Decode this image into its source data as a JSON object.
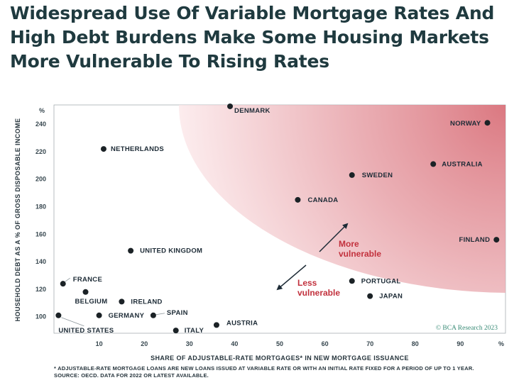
{
  "header": {
    "title_lines": [
      "Widespread Use Of Variable Mortgage Rates And",
      "High Debt Burdens Make Some Housing Markets",
      "More Vulnerable To Rising Rates"
    ]
  },
  "chart_data": {
    "type": "scatter",
    "xlabel": "SHARE OF ADJUSTABLE-RATE MORTGAGES* IN NEW MORTGAGE ISSUANCE",
    "ylabel": "HOUSEHOLD DEBT AS A % OF GROSS DISPOSABLE INCOME",
    "x_unit": "%",
    "y_unit": "%",
    "xlim": [
      0,
      100
    ],
    "ylim": [
      88,
      254
    ],
    "xticks": [
      10,
      20,
      30,
      40,
      50,
      60,
      70,
      80,
      90
    ],
    "yticks": [
      100,
      120,
      140,
      160,
      180,
      200,
      220,
      240
    ],
    "grid": false,
    "points": [
      {
        "label": "DENMARK",
        "x": 39,
        "y": 253
      },
      {
        "label": "NORWAY",
        "x": 96,
        "y": 241
      },
      {
        "label": "NETHERLANDS",
        "x": 11,
        "y": 222
      },
      {
        "label": "AUSTRALIA",
        "x": 84,
        "y": 211
      },
      {
        "label": "SWEDEN",
        "x": 66,
        "y": 203
      },
      {
        "label": "CANADA",
        "x": 54,
        "y": 185
      },
      {
        "label": "FINLAND",
        "x": 98,
        "y": 156
      },
      {
        "label": "UNITED KINGDOM",
        "x": 17,
        "y": 148
      },
      {
        "label": "PORTUGAL",
        "x": 66,
        "y": 126
      },
      {
        "label": "FRANCE",
        "x": 2,
        "y": 124
      },
      {
        "label": "BELGIUM",
        "x": 7,
        "y": 118
      },
      {
        "label": "JAPAN",
        "x": 70,
        "y": 115
      },
      {
        "label": "IRELAND",
        "x": 15,
        "y": 111
      },
      {
        "label": "GERMANY",
        "x": 10,
        "y": 101
      },
      {
        "label": "SPAIN",
        "x": 22,
        "y": 101
      },
      {
        "label": "UNITED STATES",
        "x": 1,
        "y": 101
      },
      {
        "label": "AUSTRIA",
        "x": 36,
        "y": 94
      },
      {
        "label": "ITALY",
        "x": 27,
        "y": 90
      }
    ],
    "annotations": {
      "more_vulnerable": [
        "More",
        "vulnerable"
      ],
      "less_vulnerable": [
        "Less",
        "vulnerable"
      ]
    },
    "colors": {
      "points": "#1b2226",
      "zone": "#d9717a",
      "vulnerable_text": "#c2313d"
    }
  },
  "credit": "© BCA Research 2023",
  "footnotes": [
    "* ADJUSTABLE-RATE MORTGAGE LOANS ARE NEW LOANS ISSUED AT VARIABLE RATE OR WITH AN INITIAL RATE FIXED FOR A PERIOD OF UP TO 1 YEAR.",
    "SOURCE: OECD. DATA FOR 2022 OR LATEST AVAILABLE."
  ]
}
